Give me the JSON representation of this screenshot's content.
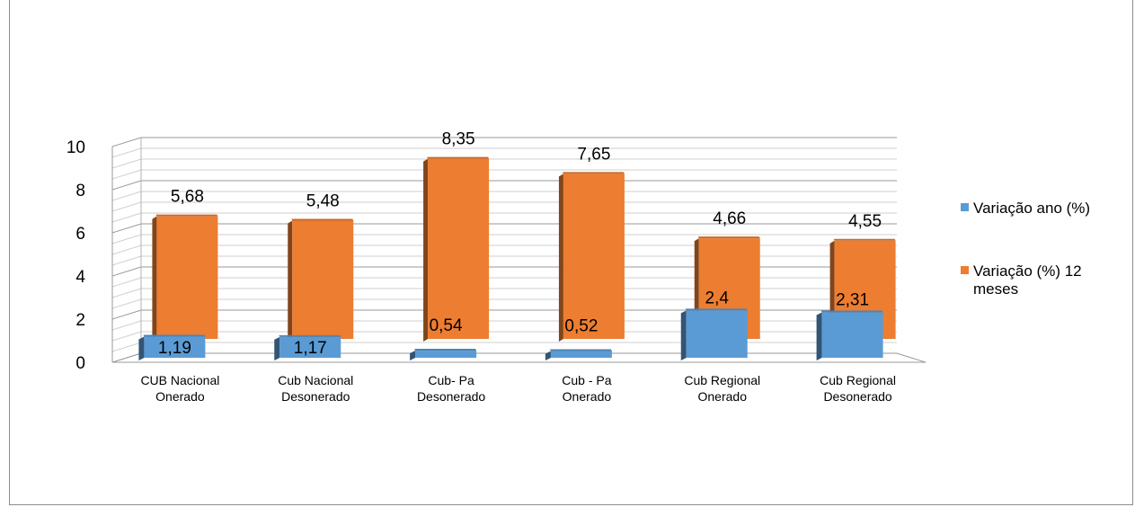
{
  "chart_data": {
    "type": "bar",
    "categories": [
      [
        "CUB Nacional",
        "Onerado"
      ],
      [
        "Cub Nacional",
        "Desonerado"
      ],
      [
        "Cub- Pa",
        "Desonerado"
      ],
      [
        "Cub - Pa",
        "Onerado"
      ],
      [
        "Cub Regional",
        "Onerado"
      ],
      [
        "Cub Regional",
        "Desonerado"
      ]
    ],
    "series": [
      {
        "name": "Variação ano (%)",
        "values": [
          1.19,
          1.17,
          0.54,
          0.52,
          2.4,
          2.31
        ],
        "labels": [
          "1,19",
          "1,17",
          "0,54",
          "0,52",
          "2,4",
          "2,31"
        ],
        "color": "#5b9bd5"
      },
      {
        "name": "Variação (%) 12 meses",
        "name_lines": [
          "Variação (%) 12",
          "meses"
        ],
        "values": [
          5.68,
          5.48,
          8.35,
          7.65,
          4.66,
          4.55
        ],
        "labels": [
          "5,68",
          "5,48",
          "8,35",
          "7,65",
          "4,66",
          "4,55"
        ],
        "color": "#ed7d31"
      }
    ],
    "y_ticks": [
      "0",
      "2",
      "4",
      "6",
      "8",
      "10"
    ],
    "ylim": [
      0,
      10
    ],
    "grid": true,
    "legend_position": "right"
  }
}
